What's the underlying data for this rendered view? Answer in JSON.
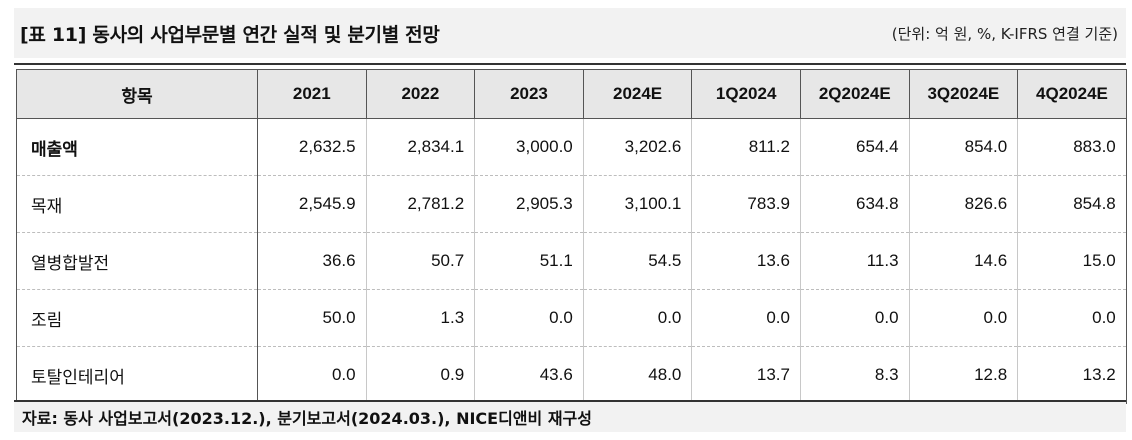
{
  "title": "[표 11] 동사의 사업부문별 연간 실적 및 분기별 전망",
  "unit_note": "(단위: 억 원, %, K-IFRS 연결 기준)",
  "table": {
    "headers": [
      "항목",
      "2021",
      "2022",
      "2023",
      "2024E",
      "1Q2024",
      "2Q2024E",
      "3Q2024E",
      "4Q2024E"
    ],
    "rows": [
      {
        "label": "매출액",
        "values": [
          "2,632.5",
          "2,834.1",
          "3,000.0",
          "3,202.6",
          "811.2",
          "654.4",
          "854.0",
          "883.0"
        ]
      },
      {
        "label": "목재",
        "values": [
          "2,545.9",
          "2,781.2",
          "2,905.3",
          "3,100.1",
          "783.9",
          "634.8",
          "826.6",
          "854.8"
        ]
      },
      {
        "label": "열병합발전",
        "values": [
          "36.6",
          "50.7",
          "51.1",
          "54.5",
          "13.6",
          "11.3",
          "14.6",
          "15.0"
        ]
      },
      {
        "label": "조림",
        "values": [
          "50.0",
          "1.3",
          "0.0",
          "0.0",
          "0.0",
          "0.0",
          "0.0",
          "0.0"
        ]
      },
      {
        "label": "토탈인테리어",
        "values": [
          "0.0",
          "0.9",
          "43.6",
          "48.0",
          "13.7",
          "8.3",
          "12.8",
          "13.2"
        ]
      }
    ]
  },
  "source": "자료: 동사 사업보고서(2023.12.), 분기보고서(2024.03.), NICE디앤비 재구성"
}
